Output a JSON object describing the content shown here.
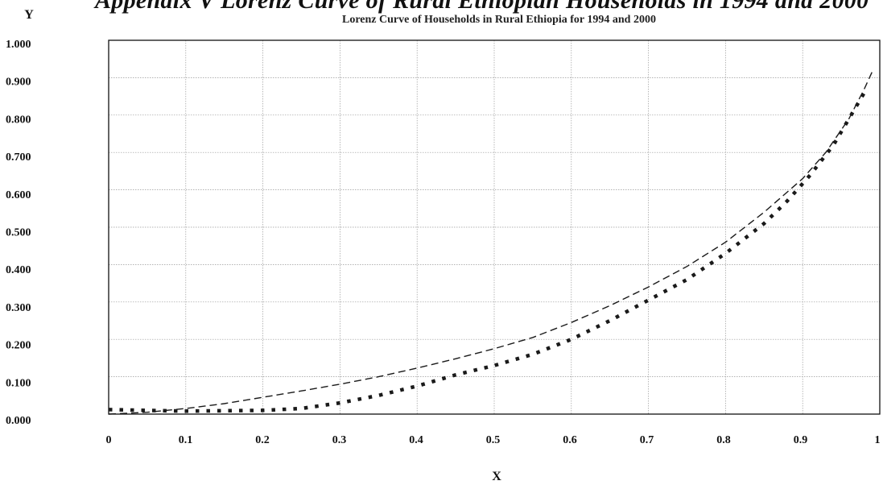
{
  "header": {
    "title": "Appendix V Lorenz Curve of Rural Ethiopian Households in 1994 and 2000",
    "subtitle": "Lorenz Curve of Households in Rural Ethiopia for 1994 and 2000"
  },
  "chart_data": {
    "type": "line",
    "title": "Lorenz Curve of Households in Rural Ethiopia for 1994 and 2000",
    "xlabel": "X",
    "ylabel": "Y",
    "xlim": [
      0,
      1
    ],
    "ylim": [
      0,
      1
    ],
    "grid": true,
    "x_ticks": [
      "0",
      "0.1",
      "0.2",
      "0.3",
      "0.4",
      "0.5",
      "0.6",
      "0.7",
      "0.8",
      "0.9",
      "1"
    ],
    "y_ticks": [
      "0.000",
      "0.100",
      "0.200",
      "0.300",
      "0.400",
      "0.500",
      "0.600",
      "0.700",
      "0.800",
      "0.900",
      "1.000"
    ],
    "series": [
      {
        "style": "dashed",
        "color": "#1a1a1a",
        "x": [
          0,
          0.05,
          0.1,
          0.15,
          0.2,
          0.25,
          0.3,
          0.35,
          0.4,
          0.45,
          0.5,
          0.55,
          0.6,
          0.65,
          0.7,
          0.75,
          0.8,
          0.85,
          0.9,
          0.93,
          0.96,
          0.98,
          0.99
        ],
        "y": [
          0.0,
          0.005,
          0.015,
          0.028,
          0.045,
          0.062,
          0.08,
          0.1,
          0.123,
          0.148,
          0.175,
          0.205,
          0.245,
          0.29,
          0.34,
          0.395,
          0.46,
          0.54,
          0.63,
          0.7,
          0.79,
          0.87,
          0.915
        ]
      },
      {
        "style": "dotted",
        "color": "#1a1a1a",
        "x": [
          0,
          0.05,
          0.1,
          0.15,
          0.2,
          0.25,
          0.3,
          0.35,
          0.4,
          0.45,
          0.5,
          0.55,
          0.6,
          0.65,
          0.7,
          0.75,
          0.8,
          0.85,
          0.88,
          0.91,
          0.94,
          0.96,
          0.98
        ],
        "y": [
          0.012,
          0.01,
          0.008,
          0.009,
          0.01,
          0.015,
          0.03,
          0.05,
          0.075,
          0.105,
          0.13,
          0.16,
          0.2,
          0.25,
          0.305,
          0.36,
          0.43,
          0.51,
          0.57,
          0.64,
          0.72,
          0.79,
          0.86
        ]
      }
    ]
  }
}
